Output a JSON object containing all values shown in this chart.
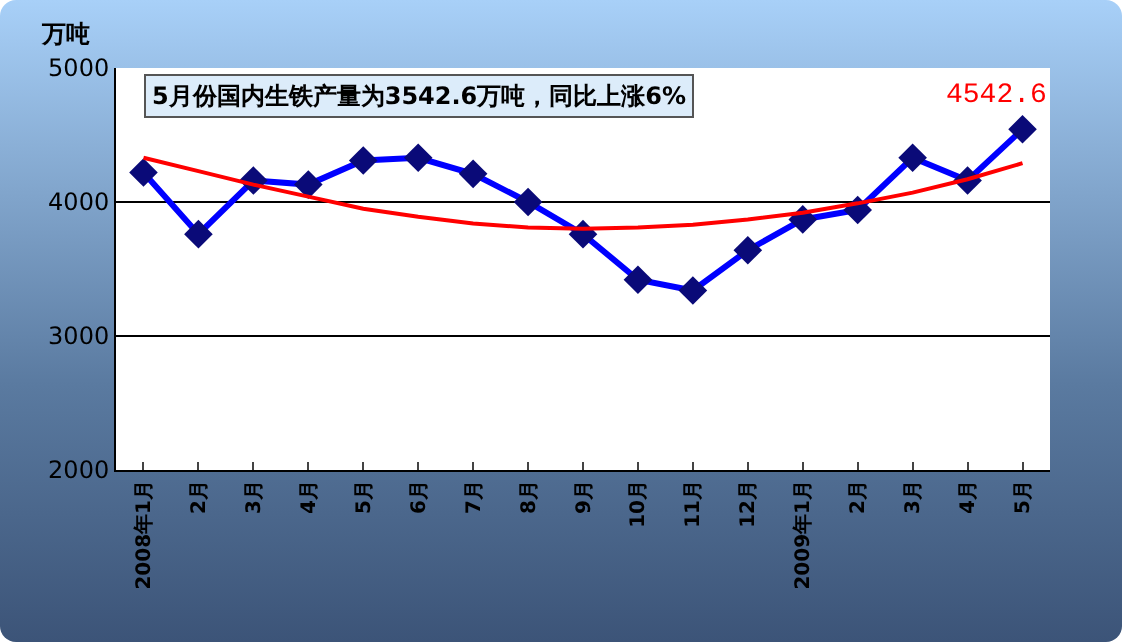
{
  "chart_data": {
    "type": "line",
    "ylabel": "万吨",
    "categories": [
      "2008年1月",
      "2月",
      "3月",
      "4月",
      "5月",
      "6月",
      "7月",
      "8月",
      "9月",
      "10月",
      "11月",
      "12月",
      "2009年1月",
      "2月",
      "3月",
      "4月",
      "5月"
    ],
    "series": [
      {
        "color": "#0000ff",
        "marker": "diamond",
        "values": [
          4220,
          3760,
          4160,
          4130,
          4310,
          4330,
          4210,
          4000,
          3760,
          3420,
          3340,
          3640,
          3870,
          3940,
          4330,
          4160,
          4542.6
        ]
      },
      {
        "type": "line",
        "color": "#ff0000",
        "marker": "none",
        "values": [
          4330,
          4230,
          4130,
          4040,
          3950,
          3890,
          3840,
          3810,
          3800,
          3810,
          3830,
          3870,
          3920,
          3990,
          4070,
          4170,
          4290
        ]
      }
    ],
    "ylim": [
      2000,
      5000
    ],
    "yticks": [
      2000,
      3000,
      4000,
      5000
    ],
    "grid": "y",
    "annotations": [
      "5月份国内生铁产量为3542.6万吨，同比上涨6%",
      "4542.6"
    ]
  }
}
